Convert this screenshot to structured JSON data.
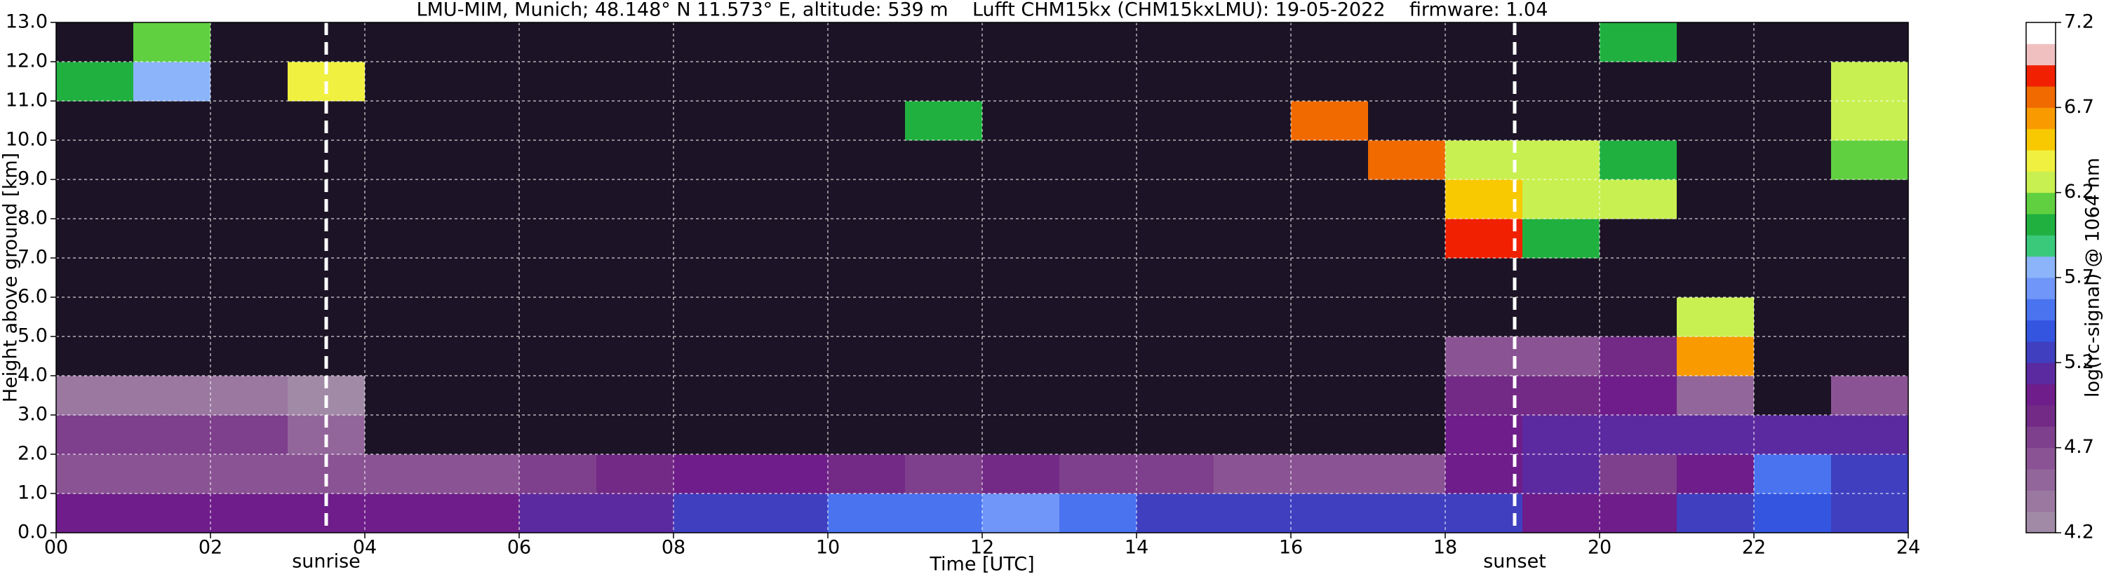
{
  "chart_data": {
    "type": "heatmap",
    "title": "LMU-MIM, Munich; 48.148° N 11.573° E, altitude: 539 m    Lufft CHM15kx (CHM15kxLMU): 19-05-2022    firmware: 1.04",
    "xlabel": "Time [UTC]",
    "ylabel": "Height above ground [km]",
    "colorbar_label": "log(rc-signal) @ 1064 nm",
    "xlim": [
      0,
      24
    ],
    "ylim": [
      0,
      13
    ],
    "xticks": [
      {
        "value": 0,
        "label": "00"
      },
      {
        "value": 2,
        "label": "02"
      },
      {
        "value": 4,
        "label": "04"
      },
      {
        "value": 6,
        "label": "06"
      },
      {
        "value": 8,
        "label": "08"
      },
      {
        "value": 10,
        "label": "10"
      },
      {
        "value": 12,
        "label": "12"
      },
      {
        "value": 14,
        "label": "14"
      },
      {
        "value": 16,
        "label": "16"
      },
      {
        "value": 18,
        "label": "18"
      },
      {
        "value": 20,
        "label": "20"
      },
      {
        "value": 22,
        "label": "22"
      },
      {
        "value": 24,
        "label": "24"
      }
    ],
    "yticks": [
      {
        "value": 0,
        "label": "0.0"
      },
      {
        "value": 1,
        "label": "1.0"
      },
      {
        "value": 2,
        "label": "2.0"
      },
      {
        "value": 3,
        "label": "3.0"
      },
      {
        "value": 4,
        "label": "4.0"
      },
      {
        "value": 5,
        "label": "5.0"
      },
      {
        "value": 6,
        "label": "6.0"
      },
      {
        "value": 7,
        "label": "7.0"
      },
      {
        "value": 8,
        "label": "8.0"
      },
      {
        "value": 9,
        "label": "9.0"
      },
      {
        "value": 10,
        "label": "10.0"
      },
      {
        "value": 11,
        "label": "11.0"
      },
      {
        "value": 12,
        "label": "12.0"
      },
      {
        "value": 13,
        "label": "13.0"
      }
    ],
    "grid": true,
    "clim": [
      4.2,
      7.2
    ],
    "cticks": [
      4.2,
      4.7,
      5.2,
      5.7,
      6.2,
      6.7,
      7.2
    ],
    "colors": [
      "#a08aa6",
      "#9a78a0",
      "#92669a",
      "#8a5494",
      "#7e3f8c",
      "#722a86",
      "#6e1d8a",
      "#5c2aa0",
      "#3f3fc0",
      "#3355e0",
      "#4a73f0",
      "#6f96f8",
      "#8cb4fa",
      "#3ac87a",
      "#20b040",
      "#60d040",
      "#c8f050",
      "#f0f040",
      "#f8c800",
      "#f89a00",
      "#f06a00",
      "#f02000",
      "#f0c0c0",
      "#ffffff"
    ],
    "under_color": "#1c1426",
    "annotations": [
      {
        "text": "sunrise",
        "x": 3.5
      },
      {
        "text": "sunset",
        "x": 18.9
      }
    ],
    "x_edges": [
      0,
      1,
      2,
      3,
      4,
      5,
      6,
      7,
      8,
      9,
      10,
      11,
      12,
      13,
      14,
      15,
      16,
      17,
      18,
      19,
      20,
      21,
      22,
      23,
      24
    ],
    "y_edges": [
      0,
      1,
      2,
      3,
      4,
      5,
      6,
      7,
      8,
      9,
      10,
      11,
      12,
      13
    ],
    "z": [
      [
        5.0,
        5.0,
        5.0,
        5.0,
        5.0,
        5.0,
        5.1,
        5.1,
        5.2,
        5.3,
        5.5,
        5.5,
        5.6,
        5.5,
        5.3,
        5.2,
        5.2,
        5.2,
        5.2,
        5.0,
        5.0,
        5.2,
        5.4,
        5.2
      ],
      [
        4.6,
        4.6,
        4.6,
        4.6,
        4.6,
        4.6,
        4.7,
        4.9,
        5.0,
        5.0,
        4.9,
        4.8,
        4.9,
        4.8,
        4.7,
        4.6,
        4.6,
        4.6,
        5.0,
        5.1,
        4.8,
        5.0,
        5.5,
        5.3
      ],
      [
        4.7,
        4.7,
        4.7,
        4.5,
        4.1,
        4.1,
        4.1,
        4.1,
        4.1,
        4.1,
        4.1,
        4.1,
        4.1,
        4.1,
        4.1,
        4.1,
        4.1,
        4.1,
        5.0,
        5.1,
        5.1,
        5.1,
        5.1,
        5.1
      ],
      [
        4.4,
        4.4,
        4.4,
        4.3,
        4.1,
        4.1,
        4.1,
        4.1,
        4.1,
        4.1,
        4.1,
        4.1,
        4.1,
        4.1,
        4.1,
        4.1,
        4.1,
        4.1,
        4.9,
        4.9,
        5.0,
        4.5,
        4.1,
        4.6
      ],
      [
        4.1,
        4.1,
        4.1,
        4.1,
        4.1,
        4.1,
        4.1,
        4.1,
        4.1,
        4.1,
        4.1,
        4.1,
        4.1,
        4.1,
        4.1,
        4.1,
        4.1,
        4.1,
        4.6,
        4.6,
        4.9,
        6.6,
        4.1,
        4.1
      ],
      [
        4.1,
        4.1,
        4.1,
        4.1,
        4.1,
        4.1,
        4.1,
        4.1,
        4.1,
        4.1,
        4.1,
        4.1,
        4.1,
        4.1,
        4.1,
        4.1,
        4.1,
        4.1,
        4.1,
        4.1,
        4.1,
        6.2,
        4.1,
        4.1
      ],
      [
        4.1,
        4.1,
        4.1,
        4.1,
        4.1,
        4.1,
        4.1,
        4.1,
        4.1,
        4.1,
        4.1,
        4.1,
        4.1,
        4.1,
        4.1,
        4.1,
        4.1,
        4.1,
        4.1,
        4.1,
        4.1,
        4.1,
        4.1,
        4.1
      ],
      [
        4.1,
        4.1,
        4.1,
        4.1,
        4.1,
        4.1,
        4.1,
        4.1,
        4.1,
        4.1,
        4.1,
        4.1,
        4.1,
        4.1,
        4.1,
        4.1,
        4.1,
        4.1,
        6.9,
        6.0,
        4.1,
        4.1,
        4.1,
        4.1
      ],
      [
        4.1,
        4.1,
        4.1,
        4.1,
        4.1,
        4.1,
        4.1,
        4.1,
        4.1,
        4.1,
        4.1,
        4.1,
        4.1,
        4.1,
        4.1,
        4.1,
        4.1,
        4.1,
        6.5,
        6.3,
        6.2,
        4.1,
        4.1,
        4.1
      ],
      [
        4.1,
        4.1,
        4.1,
        4.1,
        4.1,
        4.1,
        4.1,
        4.1,
        4.1,
        4.1,
        4.1,
        4.1,
        4.1,
        4.1,
        4.1,
        4.1,
        4.1,
        6.8,
        6.2,
        6.2,
        6.0,
        4.1,
        4.1,
        6.1
      ],
      [
        4.1,
        4.1,
        4.1,
        4.1,
        4.1,
        4.1,
        4.1,
        4.1,
        4.1,
        4.1,
        4.1,
        6.0,
        4.1,
        4.1,
        4.1,
        4.1,
        6.7,
        4.1,
        4.1,
        4.1,
        4.1,
        4.1,
        4.1,
        6.2
      ],
      [
        6.0,
        5.8,
        4.1,
        6.4,
        4.1,
        4.1,
        4.1,
        4.1,
        4.1,
        4.1,
        4.1,
        4.1,
        4.1,
        4.1,
        4.1,
        4.1,
        4.1,
        4.1,
        4.1,
        4.1,
        4.1,
        4.1,
        4.1,
        6.3
      ],
      [
        4.1,
        6.1,
        4.1,
        4.1,
        4.1,
        4.1,
        4.1,
        4.1,
        4.1,
        4.1,
        4.1,
        4.1,
        4.1,
        4.1,
        4.1,
        4.1,
        4.1,
        4.1,
        4.1,
        4.1,
        6.0,
        4.1,
        4.1,
        4.1
      ]
    ]
  }
}
